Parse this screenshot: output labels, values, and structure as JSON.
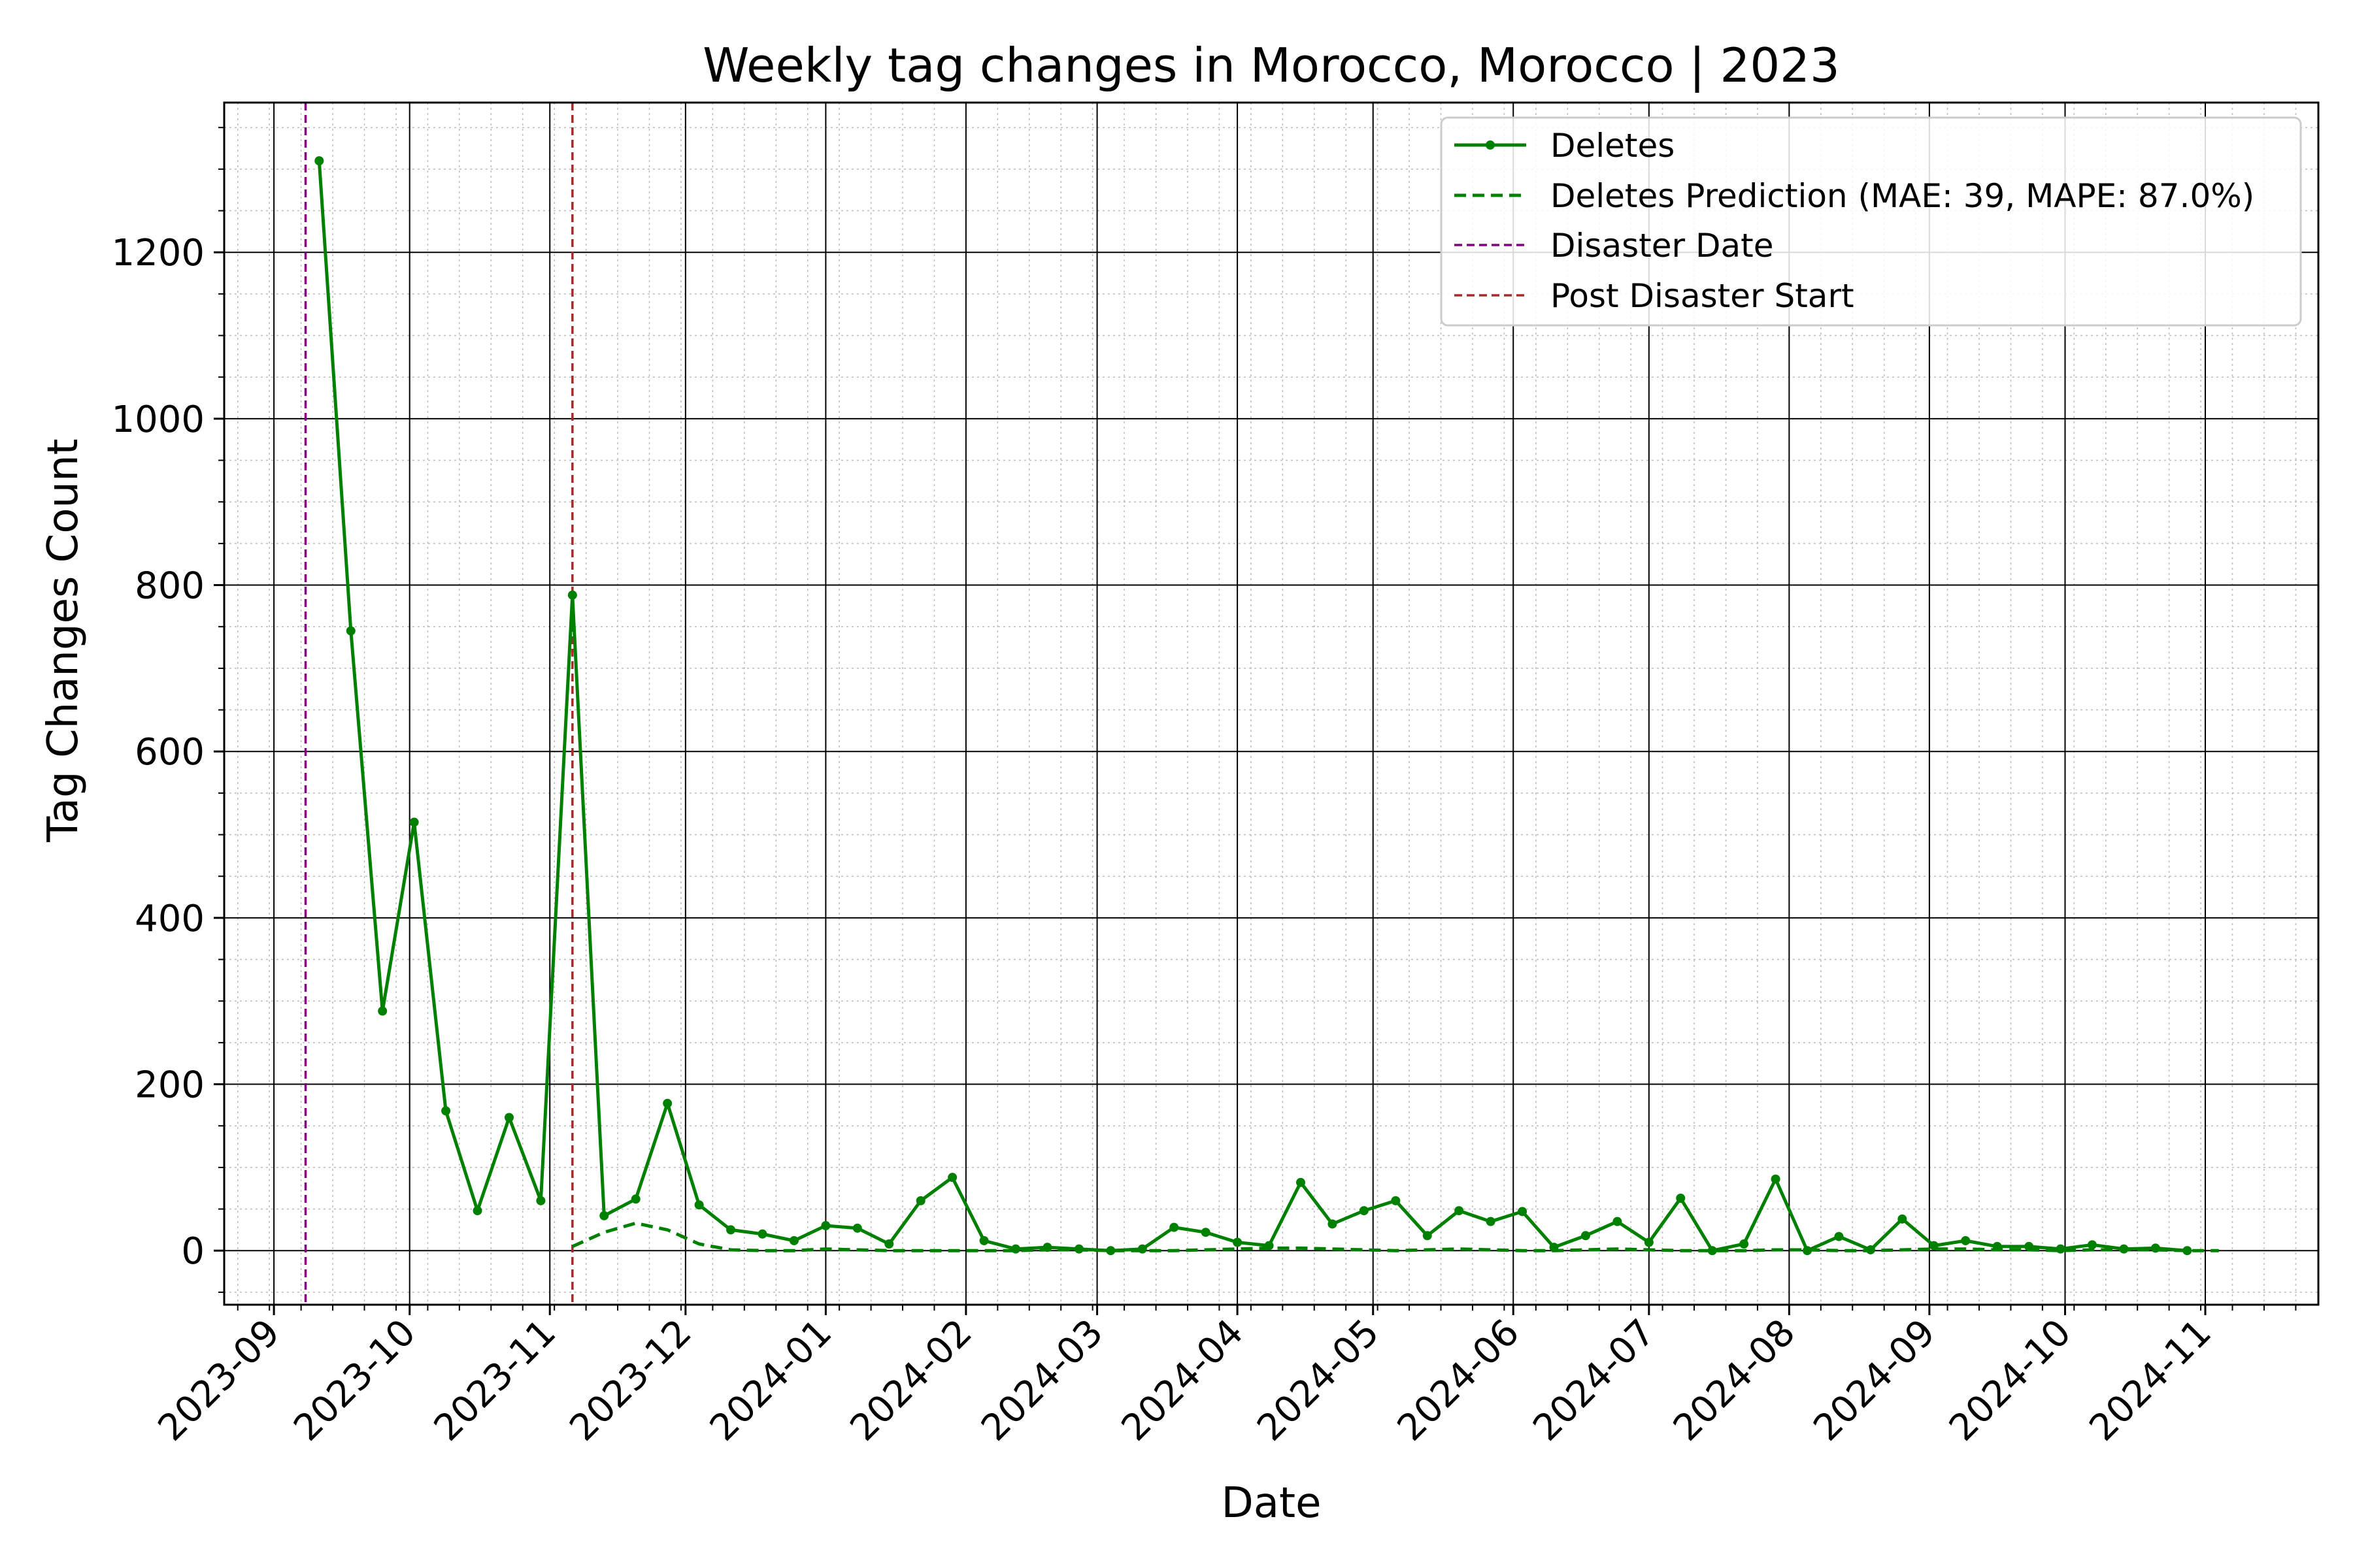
{
  "chart_data": {
    "type": "line",
    "title": "Weekly tag changes in Morocco, Morocco | 2023",
    "xlabel": "Date",
    "ylabel": "Tag Changes Count",
    "x_range": [
      "2023-08-21",
      "2024-11-26"
    ],
    "y_range": [
      -65,
      1380
    ],
    "y_ticks": [
      0,
      200,
      400,
      600,
      800,
      1000,
      1200
    ],
    "y_minor_step": 50,
    "x_ticks": [
      "2023-09-01",
      "2023-10-01",
      "2023-11-01",
      "2023-12-01",
      "2024-01-01",
      "2024-02-01",
      "2024-03-01",
      "2024-04-01",
      "2024-05-01",
      "2024-06-01",
      "2024-07-01",
      "2024-08-01",
      "2024-09-01",
      "2024-10-01",
      "2024-11-01"
    ],
    "x_tick_labels": [
      "2023-09",
      "2023-10",
      "2023-11",
      "2023-12",
      "2024-01",
      "2024-02",
      "2024-03",
      "2024-04",
      "2024-05",
      "2024-06",
      "2024-07",
      "2024-08",
      "2024-09",
      "2024-10",
      "2024-11"
    ],
    "grid": true,
    "legend_position": "top-right",
    "series": [
      {
        "name": "Deletes",
        "color": "#008000",
        "style": "solid-marker",
        "points": [
          [
            "2023-09-11",
            1310
          ],
          [
            "2023-09-18",
            745
          ],
          [
            "2023-09-25",
            288
          ],
          [
            "2023-10-02",
            515
          ],
          [
            "2023-10-09",
            168
          ],
          [
            "2023-10-16",
            48
          ],
          [
            "2023-10-23",
            160
          ],
          [
            "2023-10-30",
            60
          ],
          [
            "2023-11-06",
            788
          ],
          [
            "2023-11-13",
            42
          ],
          [
            "2023-11-20",
            62
          ],
          [
            "2023-11-27",
            177
          ],
          [
            "2023-12-04",
            55
          ],
          [
            "2023-12-11",
            25
          ],
          [
            "2023-12-18",
            20
          ],
          [
            "2023-12-25",
            12
          ],
          [
            "2024-01-01",
            30
          ],
          [
            "2024-01-08",
            27
          ],
          [
            "2024-01-15",
            8
          ],
          [
            "2024-01-22",
            60
          ],
          [
            "2024-01-29",
            88
          ],
          [
            "2024-02-05",
            12
          ],
          [
            "2024-02-12",
            2
          ],
          [
            "2024-02-19",
            4
          ],
          [
            "2024-02-26",
            2
          ],
          [
            "2024-03-04",
            0
          ],
          [
            "2024-03-11",
            2
          ],
          [
            "2024-03-18",
            28
          ],
          [
            "2024-03-25",
            22
          ],
          [
            "2024-04-01",
            10
          ],
          [
            "2024-04-08",
            6
          ],
          [
            "2024-04-15",
            82
          ],
          [
            "2024-04-22",
            32
          ],
          [
            "2024-04-29",
            48
          ],
          [
            "2024-05-06",
            60
          ],
          [
            "2024-05-13",
            18
          ],
          [
            "2024-05-20",
            48
          ],
          [
            "2024-05-27",
            35
          ],
          [
            "2024-06-03",
            47
          ],
          [
            "2024-06-10",
            4
          ],
          [
            "2024-06-17",
            18
          ],
          [
            "2024-06-24",
            35
          ],
          [
            "2024-07-01",
            10
          ],
          [
            "2024-07-08",
            63
          ],
          [
            "2024-07-15",
            0
          ],
          [
            "2024-07-22",
            8
          ],
          [
            "2024-07-29",
            86
          ],
          [
            "2024-08-05",
            0
          ],
          [
            "2024-08-12",
            17
          ],
          [
            "2024-08-19",
            1
          ],
          [
            "2024-08-26",
            38
          ],
          [
            "2024-09-02",
            6
          ],
          [
            "2024-09-09",
            12
          ],
          [
            "2024-09-16",
            5
          ],
          [
            "2024-09-23",
            5
          ],
          [
            "2024-09-30",
            2
          ],
          [
            "2024-10-07",
            7
          ],
          [
            "2024-10-14",
            2
          ],
          [
            "2024-10-21",
            3
          ],
          [
            "2024-10-28",
            0
          ]
        ]
      },
      {
        "name": "Deletes Prediction (MAE: 39, MAPE: 87.0%)",
        "color": "#008000",
        "style": "dashed",
        "points": [
          [
            "2023-11-06",
            5
          ],
          [
            "2023-11-13",
            22
          ],
          [
            "2023-11-20",
            33
          ],
          [
            "2023-11-27",
            25
          ],
          [
            "2023-12-04",
            8
          ],
          [
            "2023-12-11",
            1
          ],
          [
            "2023-12-18",
            0
          ],
          [
            "2023-12-25",
            0
          ],
          [
            "2024-01-01",
            2
          ],
          [
            "2024-01-08",
            1
          ],
          [
            "2024-01-15",
            0
          ],
          [
            "2024-01-22",
            0
          ],
          [
            "2024-01-29",
            0
          ],
          [
            "2024-02-05",
            0
          ],
          [
            "2024-02-12",
            0
          ],
          [
            "2024-02-19",
            1
          ],
          [
            "2024-02-26",
            1
          ],
          [
            "2024-03-04",
            0
          ],
          [
            "2024-03-11",
            0
          ],
          [
            "2024-03-18",
            0
          ],
          [
            "2024-03-25",
            1
          ],
          [
            "2024-04-01",
            2
          ],
          [
            "2024-04-08",
            3
          ],
          [
            "2024-04-15",
            3
          ],
          [
            "2024-04-22",
            2
          ],
          [
            "2024-04-29",
            1
          ],
          [
            "2024-05-06",
            0
          ],
          [
            "2024-05-13",
            1
          ],
          [
            "2024-05-20",
            2
          ],
          [
            "2024-05-27",
            1
          ],
          [
            "2024-06-03",
            0
          ],
          [
            "2024-06-10",
            0
          ],
          [
            "2024-06-17",
            1
          ],
          [
            "2024-06-24",
            2
          ],
          [
            "2024-07-01",
            1
          ],
          [
            "2024-07-08",
            0
          ],
          [
            "2024-07-15",
            0
          ],
          [
            "2024-07-22",
            0
          ],
          [
            "2024-07-29",
            1
          ],
          [
            "2024-08-05",
            1
          ],
          [
            "2024-08-12",
            0
          ],
          [
            "2024-08-19",
            0
          ],
          [
            "2024-08-26",
            1
          ],
          [
            "2024-09-02",
            2
          ],
          [
            "2024-09-09",
            2
          ],
          [
            "2024-09-16",
            1
          ],
          [
            "2024-09-23",
            1
          ],
          [
            "2024-09-30",
            0
          ],
          [
            "2024-10-07",
            1
          ],
          [
            "2024-10-14",
            1
          ],
          [
            "2024-10-21",
            1
          ],
          [
            "2024-10-28",
            0
          ],
          [
            "2024-11-04",
            0
          ]
        ]
      }
    ],
    "vertical_markers": [
      {
        "name": "Disaster Date",
        "date": "2023-09-08",
        "color": "#800080"
      },
      {
        "name": "Post Disaster Start",
        "date": "2023-11-06",
        "color": "#a52a2a"
      }
    ]
  }
}
